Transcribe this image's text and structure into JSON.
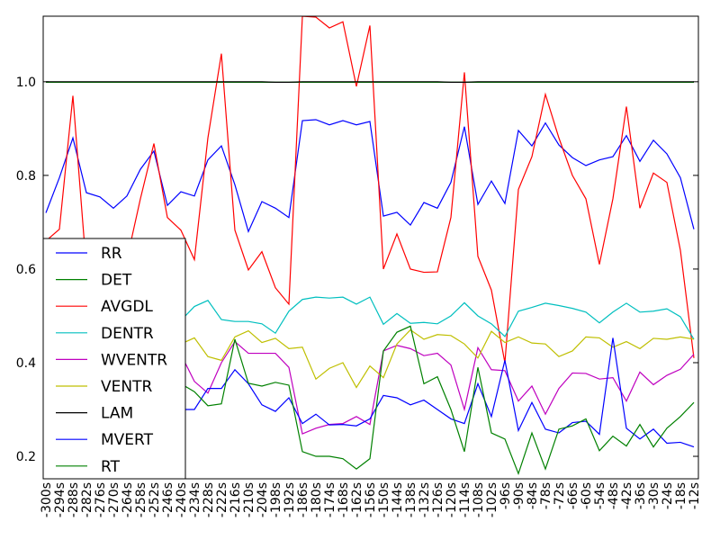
{
  "chart_data": {
    "type": "line",
    "categories": [
      "-300s",
      "-294s",
      "-288s",
      "-282s",
      "-276s",
      "-270s",
      "-264s",
      "-258s",
      "-252s",
      "-246s",
      "-240s",
      "-234s",
      "-228s",
      "-222s",
      "-216s",
      "-210s",
      "-204s",
      "-198s",
      "-192s",
      "-186s",
      "-180s",
      "-174s",
      "-168s",
      "-162s",
      "-156s",
      "-150s",
      "-144s",
      "-138s",
      "-132s",
      "-126s",
      "-120s",
      "-114s",
      "-108s",
      "-102s",
      "-96s",
      "-90s",
      "-84s",
      "-78s",
      "-72s",
      "-66s",
      "-60s",
      "-54s",
      "-48s",
      "-42s",
      "-36s",
      "-30s",
      "-24s",
      "-18s",
      "-12s"
    ],
    "ylim": [
      0.152,
      1.14
    ],
    "yticks": [
      0.2,
      0.4,
      0.6,
      0.8,
      {
        "value": 1,
        "label": "1.0"
      }
    ],
    "legend": "lower left",
    "series": [
      {
        "name": "RR",
        "color": "#0000ff",
        "values": [
          0.72,
          0.795,
          0.88,
          0.763,
          0.754,
          0.73,
          0.756,
          0.813,
          0.852,
          0.736,
          0.765,
          0.756,
          0.833,
          0.863,
          0.78,
          0.68,
          0.744,
          0.73,
          0.71,
          0.917,
          0.919,
          0.908,
          0.917,
          0.908,
          0.915,
          0.713,
          0.721,
          0.694,
          0.742,
          0.73,
          0.785,
          0.904,
          0.738,
          0.788,
          0.74,
          0.896,
          0.863,
          0.912,
          0.865,
          0.838,
          0.821,
          0.833,
          0.84,
          0.885,
          0.83,
          0.875,
          0.846,
          0.795,
          0.685
        ]
      },
      {
        "name": "DET",
        "color": "#008000",
        "values": [
          0.999,
          0.999,
          0.999,
          0.999,
          0.999,
          0.999,
          0.999,
          0.999,
          0.999,
          0.999,
          0.999,
          0.999,
          0.999,
          0.999,
          0.999,
          0.999,
          0.999,
          0.999,
          0.999,
          0.999,
          0.999,
          0.999,
          0.999,
          0.999,
          0.999,
          0.999,
          0.999,
          0.999,
          0.999,
          0.999,
          0.999,
          0.999,
          0.999,
          0.999,
          0.999,
          0.999,
          0.999,
          0.999,
          0.999,
          0.999,
          0.999,
          0.999,
          0.999,
          0.999,
          0.999,
          0.999,
          0.999,
          0.999,
          0.999
        ]
      },
      {
        "name": "AVGDL",
        "color": "#ff0000",
        "values": [
          0.66,
          0.685,
          0.97,
          0.6,
          0.5,
          0.5,
          0.62,
          0.75,
          0.868,
          0.71,
          0.683,
          0.62,
          0.88,
          1.06,
          0.683,
          0.598,
          0.637,
          0.56,
          0.525,
          1.14,
          1.138,
          1.115,
          1.128,
          0.99,
          1.12,
          0.6,
          0.675,
          0.6,
          0.593,
          0.594,
          0.71,
          1.02,
          0.627,
          0.555,
          0.4,
          0.77,
          0.84,
          0.973,
          0.88,
          0.8,
          0.75,
          0.61,
          0.75,
          0.947,
          0.73,
          0.805,
          0.785,
          0.64,
          0.41
        ]
      },
      {
        "name": "DENTR",
        "color": "#00bfbf",
        "values": [
          0.5,
          0.51,
          0.52,
          0.5,
          0.49,
          0.5,
          0.51,
          0.52,
          0.5,
          0.495,
          0.49,
          0.52,
          0.533,
          0.492,
          0.488,
          0.488,
          0.483,
          0.463,
          0.51,
          0.535,
          0.54,
          0.538,
          0.54,
          0.525,
          0.54,
          0.482,
          0.505,
          0.484,
          0.486,
          0.483,
          0.5,
          0.528,
          0.5,
          0.483,
          0.456,
          0.51,
          0.518,
          0.527,
          0.522,
          0.516,
          0.508,
          0.485,
          0.508,
          0.527,
          0.508,
          0.51,
          0.515,
          0.498,
          0.45
        ]
      },
      {
        "name": "WVENTR",
        "color": "#bf00bf",
        "values": [
          0.4,
          0.41,
          0.42,
          0.4,
          0.39,
          0.4,
          0.41,
          0.42,
          0.4,
          0.41,
          0.418,
          0.36,
          0.335,
          0.4,
          0.445,
          0.42,
          0.42,
          0.42,
          0.39,
          0.248,
          0.26,
          0.268,
          0.27,
          0.285,
          0.268,
          0.425,
          0.437,
          0.43,
          0.415,
          0.42,
          0.395,
          0.3,
          0.432,
          0.385,
          0.383,
          0.318,
          0.35,
          0.29,
          0.345,
          0.378,
          0.377,
          0.365,
          0.368,
          0.318,
          0.38,
          0.353,
          0.373,
          0.386,
          0.418
        ]
      },
      {
        "name": "VENTR",
        "color": "#bfbf00",
        "values": [
          0.44,
          0.45,
          0.46,
          0.44,
          0.43,
          0.44,
          0.45,
          0.46,
          0.44,
          0.45,
          0.44,
          0.453,
          0.413,
          0.405,
          0.455,
          0.468,
          0.443,
          0.452,
          0.43,
          0.433,
          0.365,
          0.388,
          0.4,
          0.347,
          0.393,
          0.368,
          0.44,
          0.47,
          0.45,
          0.46,
          0.458,
          0.44,
          0.41,
          0.467,
          0.443,
          0.455,
          0.442,
          0.44,
          0.413,
          0.425,
          0.455,
          0.453,
          0.433,
          0.445,
          0.43,
          0.452,
          0.45,
          0.455,
          0.45
        ]
      },
      {
        "name": "LAM",
        "color": "#000000",
        "values": [
          1,
          1,
          1,
          1,
          1,
          1,
          1,
          1,
          1,
          1,
          1,
          1,
          1,
          1,
          1,
          1,
          1,
          0.999,
          0.999,
          1,
          1,
          1,
          1,
          1,
          1,
          1,
          1,
          1,
          1,
          1,
          0.999,
          0.999,
          1,
          1,
          1,
          1,
          1,
          1,
          1,
          1,
          1,
          1,
          1,
          1,
          1,
          1,
          1,
          1,
          1
        ]
      },
      {
        "name": "MVERT",
        "color": "#0000ff",
        "values": [
          0.3,
          0.31,
          0.33,
          0.3,
          0.29,
          0.3,
          0.31,
          0.33,
          0.3,
          0.32,
          0.3,
          0.3,
          0.345,
          0.345,
          0.385,
          0.355,
          0.31,
          0.296,
          0.325,
          0.27,
          0.29,
          0.267,
          0.268,
          0.265,
          0.28,
          0.33,
          0.325,
          0.31,
          0.32,
          0.3,
          0.28,
          0.27,
          0.355,
          0.285,
          0.405,
          0.255,
          0.315,
          0.258,
          0.25,
          0.272,
          0.275,
          0.247,
          0.453,
          0.26,
          0.237,
          0.258,
          0.228,
          0.23,
          0.22
        ]
      },
      {
        "name": "RT",
        "color": "#008000",
        "values": [
          0.38,
          0.39,
          0.4,
          0.37,
          0.36,
          0.38,
          0.39,
          0.4,
          0.37,
          0.375,
          0.355,
          0.338,
          0.308,
          0.312,
          0.45,
          0.356,
          0.35,
          0.358,
          0.352,
          0.21,
          0.2,
          0.2,
          0.195,
          0.173,
          0.195,
          0.425,
          0.465,
          0.478,
          0.355,
          0.37,
          0.3,
          0.21,
          0.39,
          0.25,
          0.237,
          0.163,
          0.25,
          0.173,
          0.258,
          0.265,
          0.28,
          0.212,
          0.243,
          0.222,
          0.268,
          0.22,
          0.26,
          0.285,
          0.315
        ]
      }
    ]
  }
}
